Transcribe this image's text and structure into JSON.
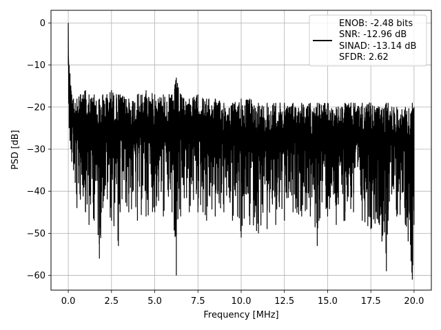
{
  "chart_data": {
    "type": "line",
    "title": "",
    "xlabel": "Frequency [MHz]",
    "ylabel": "PSD [dB]",
    "xlim": [
      -1.0,
      21.0
    ],
    "ylim": [
      -63.5,
      3.0
    ],
    "xticks": [
      0.0,
      2.5,
      5.0,
      7.5,
      10.0,
      12.5,
      15.0,
      17.5,
      20.0
    ],
    "xtick_labels": [
      "0.0",
      "2.5",
      "5.0",
      "7.5",
      "10.0",
      "12.5",
      "15.0",
      "17.5",
      "20.0"
    ],
    "yticks": [
      0,
      -10,
      -20,
      -30,
      -40,
      -50,
      -60
    ],
    "ytick_labels": [
      "0",
      "−10",
      "−20",
      "−30",
      "−40",
      "−50",
      "−60"
    ],
    "grid": true,
    "legend_position": "top-right",
    "line_color": "#000000",
    "series": [
      {
        "legend_lines": [
          "ENOB: -2.48 bits",
          "SNR: -12.96 dB",
          "SINAD: -13.14 dB",
          "SFDR: 2.62"
        ],
        "x": [
          0.0,
          0.02,
          0.05,
          0.1,
          0.15,
          0.2,
          0.3,
          0.4,
          0.5,
          0.7,
          1.0,
          1.2,
          1.5,
          1.8,
          2.0,
          2.5,
          2.9,
          3.0,
          3.5,
          4.0,
          4.5,
          5.0,
          5.5,
          6.0,
          6.25,
          6.5,
          7.0,
          7.5,
          8.0,
          8.5,
          9.0,
          9.5,
          10.0,
          10.5,
          11.0,
          11.5,
          12.0,
          12.5,
          13.0,
          13.5,
          14.0,
          14.4,
          14.5,
          15.0,
          15.5,
          16.0,
          16.5,
          17.0,
          17.5,
          18.0,
          18.4,
          18.5,
          19.0,
          19.5,
          19.9,
          20.0
        ],
        "y_upper": [
          0,
          -9,
          -10,
          -12,
          -15,
          -17,
          -18,
          -19,
          -18,
          -17,
          -16,
          -17,
          -17,
          -18,
          -17,
          -16,
          -17,
          -17,
          -18,
          -17,
          -16,
          -17,
          -17,
          -17,
          -13,
          -17,
          -18,
          -17,
          -18,
          -18,
          -19,
          -19,
          -18,
          -18,
          -19,
          -19,
          -19,
          -19,
          -19,
          -19,
          -19,
          -19,
          -19,
          -19,
          -20,
          -19,
          -19,
          -19,
          -19,
          -20,
          -19,
          -19,
          -20,
          -20,
          -19,
          -20
        ],
        "y_lower": [
          -10,
          -18,
          -25,
          -28,
          -30,
          -33,
          -35,
          -38,
          -44,
          -42,
          -45,
          -48,
          -47,
          -56,
          -44,
          -47,
          -53,
          -45,
          -45,
          -47,
          -46,
          -45,
          -46,
          -45,
          -60,
          -46,
          -45,
          -45,
          -47,
          -46,
          -45,
          -47,
          -51,
          -48,
          -50,
          -49,
          -48,
          -47,
          -45,
          -46,
          -46,
          -53,
          -47,
          -46,
          -48,
          -47,
          -45,
          -47,
          -49,
          -48,
          -59,
          -47,
          -46,
          -48,
          -61,
          -48
        ]
      }
    ]
  }
}
